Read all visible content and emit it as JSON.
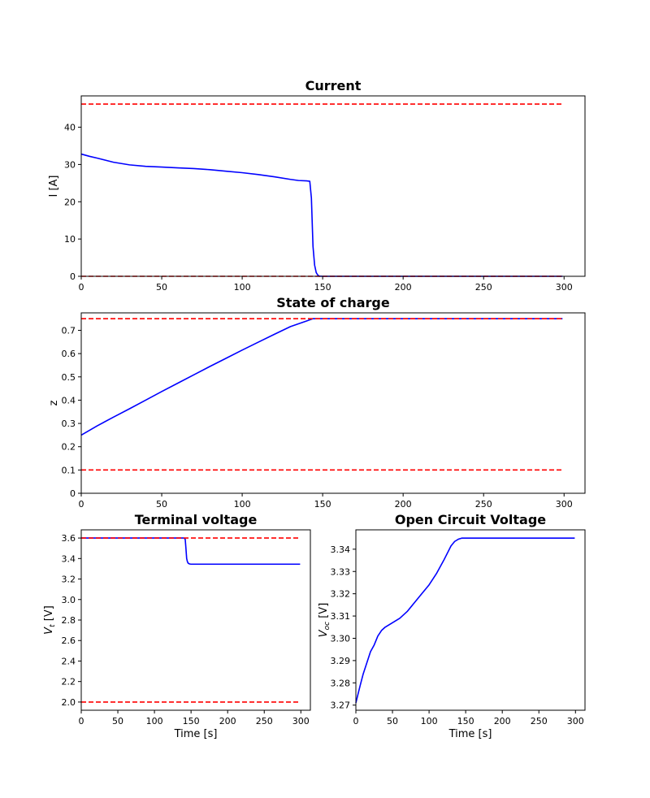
{
  "chart_data": [
    {
      "type": "line",
      "title": "Current",
      "xlabel": "",
      "ylabel": "I [A]",
      "xlim": [
        0,
        313
      ],
      "ylim": [
        0,
        48.4
      ],
      "xticks": [
        0,
        50,
        100,
        150,
        200,
        250,
        300
      ],
      "yticks": [
        0,
        10,
        20,
        30,
        40
      ],
      "grid": false,
      "series": [
        {
          "color": "#0000ff",
          "style": "solid",
          "x": [
            0,
            5,
            10,
            20,
            30,
            40,
            50,
            60,
            70,
            80,
            90,
            100,
            110,
            120,
            130,
            135,
            140,
            142,
            143,
            144,
            145,
            146,
            147,
            148,
            150,
            160,
            200,
            250,
            299
          ],
          "y": [
            32.8,
            32.2,
            31.7,
            30.6,
            29.9,
            29.5,
            29.3,
            29.1,
            28.9,
            28.6,
            28.2,
            27.8,
            27.3,
            26.7,
            26.0,
            25.7,
            25.6,
            25.5,
            21.0,
            8.0,
            3.0,
            1.0,
            0.3,
            0.05,
            0,
            0,
            0,
            0,
            0
          ]
        },
        {
          "color": "#ff0000",
          "style": "dashed",
          "x": [
            0,
            299
          ],
          "y": [
            46.2,
            46.2
          ]
        },
        {
          "color": "#ff0000",
          "style": "dashed",
          "x": [
            0,
            299
          ],
          "y": [
            0,
            0
          ]
        }
      ]
    },
    {
      "type": "line",
      "title": "State of charge",
      "xlabel": "",
      "ylabel": "z",
      "xlim": [
        0,
        313
      ],
      "ylim": [
        0,
        0.775
      ],
      "xticks": [
        0,
        50,
        100,
        150,
        200,
        250,
        300
      ],
      "yticks": [
        0.0,
        0.1,
        0.2,
        0.3,
        0.4,
        0.5,
        0.6,
        0.7
      ],
      "grid": false,
      "series": [
        {
          "color": "#0000ff",
          "style": "solid",
          "x": [
            0,
            10,
            20,
            30,
            40,
            50,
            60,
            70,
            80,
            90,
            100,
            110,
            120,
            130,
            140,
            144,
            150,
            200,
            250,
            299
          ],
          "y": [
            0.25,
            0.29,
            0.327,
            0.363,
            0.4,
            0.437,
            0.473,
            0.509,
            0.545,
            0.58,
            0.615,
            0.649,
            0.683,
            0.716,
            0.74,
            0.75,
            0.75,
            0.75,
            0.75,
            0.75
          ]
        },
        {
          "color": "#ff0000",
          "style": "dashed",
          "x": [
            0,
            299
          ],
          "y": [
            0.75,
            0.75
          ]
        },
        {
          "color": "#ff0000",
          "style": "dashed",
          "x": [
            0,
            299
          ],
          "y": [
            0.1,
            0.1
          ]
        }
      ]
    },
    {
      "type": "line",
      "title": "Terminal voltage",
      "xlabel": "Time [s]",
      "ylabel": "V_t [V]",
      "ylabel_main": "V",
      "ylabel_sub": "t",
      "ylabel_unit": " [V]",
      "xlim": [
        0,
        313
      ],
      "ylim": [
        1.92,
        3.68
      ],
      "xticks": [
        0,
        50,
        100,
        150,
        200,
        250,
        300
      ],
      "yticks": [
        2.0,
        2.2,
        2.4,
        2.6,
        2.8,
        3.0,
        3.2,
        3.4,
        3.6
      ],
      "ytick_labels": [
        "2.0",
        "2.2",
        "2.4",
        "2.6",
        "2.8",
        "3.0",
        "3.2",
        "3.4",
        "3.6"
      ],
      "grid": false,
      "series": [
        {
          "color": "#0000ff",
          "style": "solid",
          "x": [
            0,
            50,
            100,
            140,
            142,
            143,
            144,
            145,
            146,
            148,
            150,
            200,
            250,
            299
          ],
          "y": [
            3.6,
            3.6,
            3.6,
            3.6,
            3.59,
            3.5,
            3.4,
            3.37,
            3.355,
            3.347,
            3.345,
            3.345,
            3.345,
            3.345
          ]
        },
        {
          "color": "#ff0000",
          "style": "dashed",
          "x": [
            0,
            299
          ],
          "y": [
            3.6,
            3.6
          ]
        },
        {
          "color": "#ff0000",
          "style": "dashed",
          "x": [
            0,
            299
          ],
          "y": [
            2.0,
            2.0
          ]
        }
      ]
    },
    {
      "type": "line",
      "title": "Open Circuit Voltage",
      "xlabel": "Time [s]",
      "ylabel": "V_oc [V]",
      "ylabel_main": "V",
      "ylabel_sub": "oc",
      "ylabel_unit": " [V]",
      "xlim": [
        0,
        313
      ],
      "ylim": [
        3.2677,
        3.3487
      ],
      "xticks": [
        0,
        50,
        100,
        150,
        200,
        250,
        300
      ],
      "yticks": [
        3.27,
        3.28,
        3.29,
        3.3,
        3.31,
        3.32,
        3.33,
        3.34
      ],
      "ytick_labels": [
        "3.27",
        "3.28",
        "3.29",
        "3.30",
        "3.31",
        "3.32",
        "3.33",
        "3.34"
      ],
      "grid": false,
      "series": [
        {
          "color": "#0000ff",
          "style": "solid",
          "x": [
            0,
            3,
            6,
            10,
            15,
            20,
            25,
            30,
            35,
            40,
            50,
            60,
            70,
            80,
            90,
            100,
            110,
            115,
            120,
            130,
            135,
            140,
            145,
            150,
            200,
            250,
            299
          ],
          "y": [
            3.271,
            3.275,
            3.279,
            3.284,
            3.289,
            3.294,
            3.297,
            3.301,
            3.3035,
            3.305,
            3.307,
            3.309,
            3.312,
            3.316,
            3.32,
            3.324,
            3.329,
            3.332,
            3.335,
            3.3415,
            3.3435,
            3.3445,
            3.345,
            3.345,
            3.345,
            3.345,
            3.345
          ]
        }
      ]
    }
  ]
}
